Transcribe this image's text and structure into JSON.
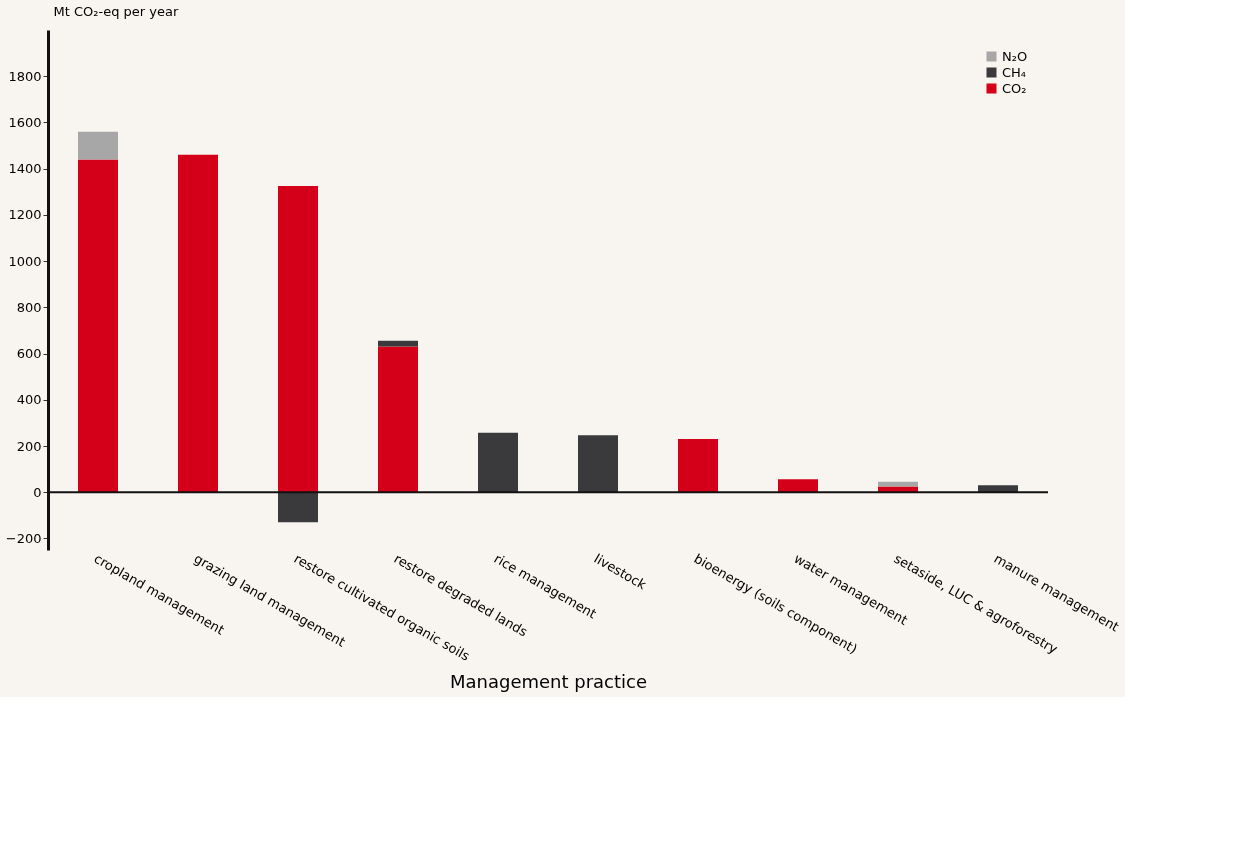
{
  "chart_data": {
    "type": "bar",
    "stacked": true,
    "ylabel": "Mt CO₂-eq per year",
    "xlabel": "Management practice",
    "categories": [
      "cropland management",
      "grazing land management",
      "restore cultivated organic soils",
      "restore degraded lands",
      "rice management",
      "livestock",
      "bioenergy (soils component)",
      "water management",
      "setaside, LUC & agroforestry",
      "manure management"
    ],
    "series": [
      {
        "name": "CO₂",
        "color": "#d4001a",
        "values": [
          1440,
          1460,
          1325,
          630,
          null,
          null,
          230,
          56,
          25,
          null
        ]
      },
      {
        "name": "CH₄",
        "color": "#3a3a3c",
        "values": [
          null,
          null,
          -130,
          25,
          257,
          246,
          null,
          null,
          null,
          30
        ]
      },
      {
        "name": "N₂O",
        "color": "#a7a7a7",
        "values": [
          120,
          null,
          null,
          null,
          null,
          null,
          null,
          null,
          20,
          null
        ]
      }
    ],
    "ylim": [
      -250,
      2000
    ],
    "yticks": [
      -200,
      0,
      200,
      400,
      600,
      800,
      1000,
      1200,
      1400,
      1600,
      1800
    ],
    "legend": "top right"
  }
}
